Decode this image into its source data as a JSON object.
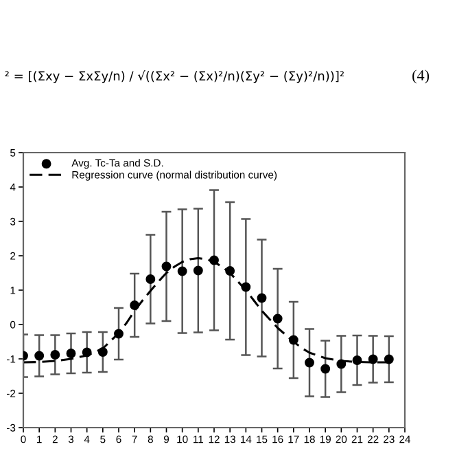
{
  "chart_data": {
    "type": "scatter",
    "annotations": [
      "² = [(Σxy − ΣxΣy/n) / √((Σx² − (Σx)²/n)(Σy² − (Σy)²/n))]²",
      "(4)"
    ],
    "xlim": [
      0,
      24
    ],
    "xticks": [
      0,
      1,
      2,
      3,
      4,
      5,
      6,
      7,
      8,
      9,
      10,
      11,
      12,
      13,
      14,
      15,
      16,
      17,
      18,
      19,
      20,
      21,
      22,
      23,
      24
    ],
    "ylim": [
      -3,
      5
    ],
    "yticks": [
      -3,
      -2,
      -1,
      0,
      1,
      2,
      3,
      4,
      5
    ],
    "grid": false,
    "legend": "top left",
    "series": [
      {
        "name": "Avg. Tc-Ta and S.D.",
        "color": "#000000",
        "marker": "circle",
        "x": [
          0,
          1,
          2,
          3,
          4,
          5,
          6,
          7,
          8,
          9,
          10,
          11,
          12,
          13,
          14,
          15,
          16,
          17,
          18,
          19,
          20,
          21,
          22,
          23
        ],
        "values": [
          -0.91,
          -0.91,
          -0.88,
          -0.84,
          -0.81,
          -0.8,
          -0.27,
          0.56,
          1.32,
          1.69,
          1.55,
          1.57,
          1.87,
          1.56,
          1.09,
          0.77,
          0.17,
          -0.45,
          -1.11,
          -1.29,
          -1.15,
          -1.04,
          -1.01,
          -1.01
        ],
        "errors": [
          0.62,
          0.6,
          0.57,
          0.58,
          0.59,
          0.58,
          0.75,
          0.92,
          1.29,
          1.59,
          1.8,
          1.8,
          2.04,
          2.0,
          1.98,
          1.7,
          1.45,
          1.11,
          0.98,
          0.82,
          0.82,
          0.72,
          0.68,
          0.67
        ]
      },
      {
        "name": "Regression curve (normal distribution curve)",
        "type": "line",
        "color": "#000000",
        "line_style": "dashed",
        "marker": "none",
        "x": [
          0,
          1,
          2,
          3,
          4,
          5,
          6,
          6.5,
          7,
          7.5,
          8,
          8.5,
          9,
          9.5,
          10,
          10.5,
          11,
          11.5,
          12,
          12.5,
          13,
          13.5,
          14,
          14.5,
          15,
          15.5,
          16,
          16.5,
          17,
          17.5,
          18,
          19,
          20,
          21,
          22,
          23
        ],
        "values": [
          -1.1,
          -1.09,
          -1.06,
          -1.0,
          -0.9,
          -0.7,
          -0.25,
          0.05,
          0.4,
          0.7,
          0.98,
          1.25,
          1.5,
          1.68,
          1.82,
          1.9,
          1.93,
          1.9,
          1.82,
          1.68,
          1.5,
          1.25,
          1.0,
          0.7,
          0.4,
          0.15,
          -0.1,
          -0.3,
          -0.5,
          -0.68,
          -0.82,
          -0.98,
          -1.06,
          -1.09,
          -1.1,
          -1.1
        ]
      }
    ]
  }
}
